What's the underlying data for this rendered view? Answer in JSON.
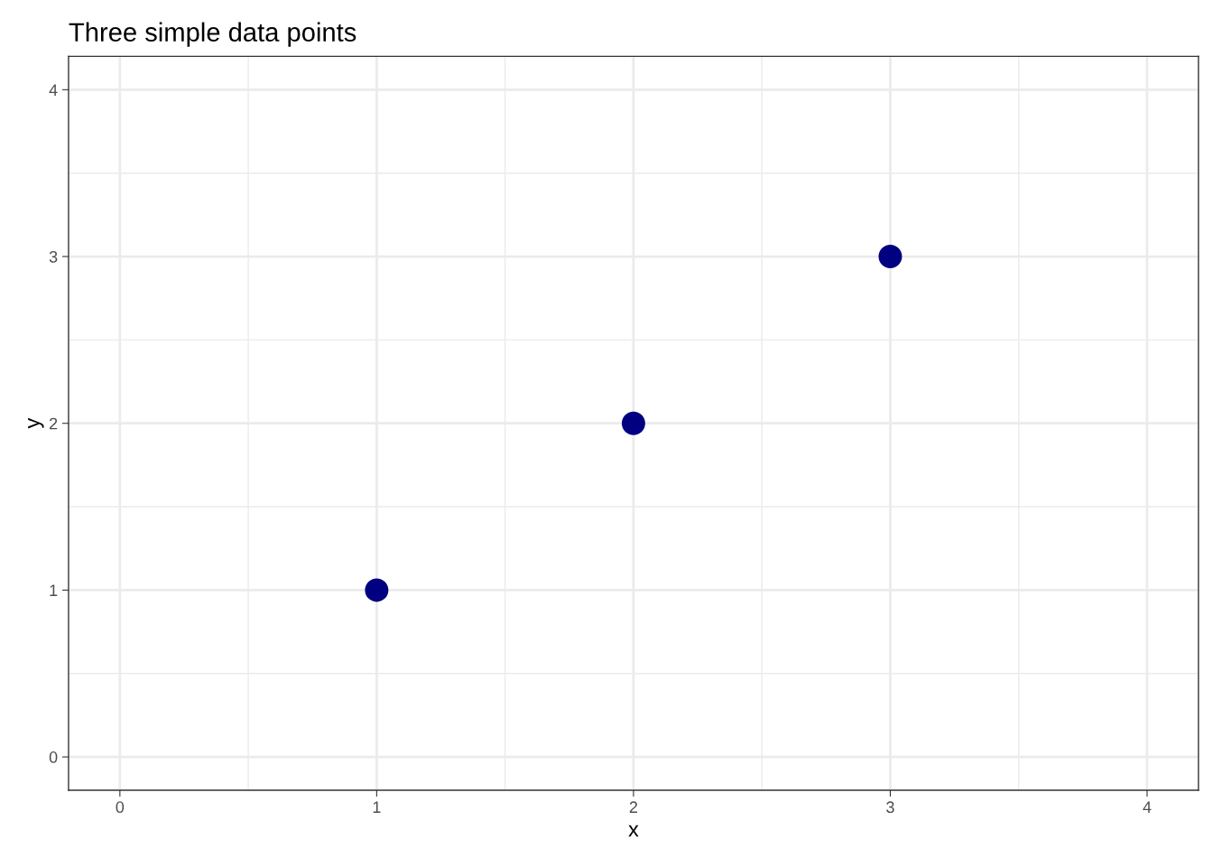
{
  "chart_data": {
    "type": "scatter",
    "title": "Three simple data points",
    "xlabel": "x",
    "ylabel": "y",
    "x": [
      1,
      2,
      3
    ],
    "series": [
      {
        "color": "#000080",
        "values": [
          1,
          2,
          3
        ]
      }
    ],
    "xlim": [
      -0.2,
      4.2
    ],
    "ylim": [
      -0.2,
      4.2
    ],
    "xticks": [
      0,
      1,
      2,
      3,
      4
    ],
    "yticks": [
      0,
      1,
      2,
      3,
      4
    ],
    "grid": true,
    "marker": "circle"
  }
}
